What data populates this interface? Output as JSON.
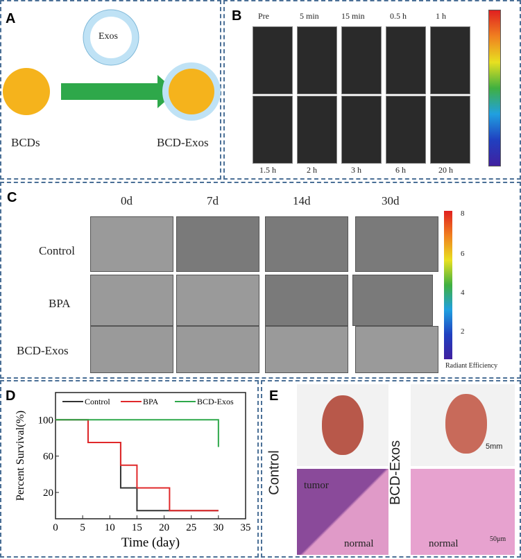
{
  "panels": {
    "a": {
      "label": "A",
      "exos": "Exos",
      "bcds": "BCDs",
      "bcd_exos": "BCD-Exos",
      "colors": {
        "bcd": "#f5b31c",
        "arrow": "#2ea84a",
        "shell": "#bfe2f5"
      }
    },
    "b": {
      "label": "B",
      "top_times": [
        "Pre",
        "5 min",
        "15 min",
        "0.5 h",
        "1 h"
      ],
      "bottom_times": [
        "1.5 h",
        "2 h",
        "3 h",
        "6 h",
        "20 h"
      ]
    },
    "c": {
      "label": "C",
      "days": [
        "0d",
        "7d",
        "14d",
        "30d"
      ],
      "rows": [
        "Control",
        "BPA",
        "BCD-Exos"
      ],
      "colorbar": {
        "ticks": [
          "8",
          "6",
          "4",
          "2"
        ],
        "label": "Radiant Efficiency"
      }
    },
    "d": {
      "label": "D"
    },
    "e": {
      "label": "E",
      "rows": [
        "Control",
        "BCD-Exos"
      ],
      "scale_top": "5mm",
      "scale_bottom": "50μm",
      "tumor": "tumor",
      "normal": "normal"
    }
  },
  "chart_data": {
    "type": "line",
    "step": true,
    "xlabel": "Time (day)",
    "ylabel": "Percent Survival(%)",
    "xlim": [
      0,
      35
    ],
    "ylim": [
      -9,
      130
    ],
    "xticks": [
      0,
      5,
      10,
      15,
      20,
      25,
      30,
      35
    ],
    "yticks": [
      20,
      60,
      100
    ],
    "legend_position": "top",
    "series": [
      {
        "name": "Control",
        "color": "#333333",
        "x": [
          0,
          6,
          12,
          15,
          30
        ],
        "y": [
          100,
          75,
          25,
          0,
          0
        ]
      },
      {
        "name": "BPA",
        "color": "#e0282a",
        "x": [
          0,
          6,
          12,
          15,
          21,
          30
        ],
        "y": [
          100,
          75,
          50,
          25,
          0,
          0
        ]
      },
      {
        "name": "BCD-Exos",
        "color": "#2ea84a",
        "x": [
          0,
          30,
          30
        ],
        "y": [
          100,
          100,
          70
        ]
      }
    ]
  }
}
